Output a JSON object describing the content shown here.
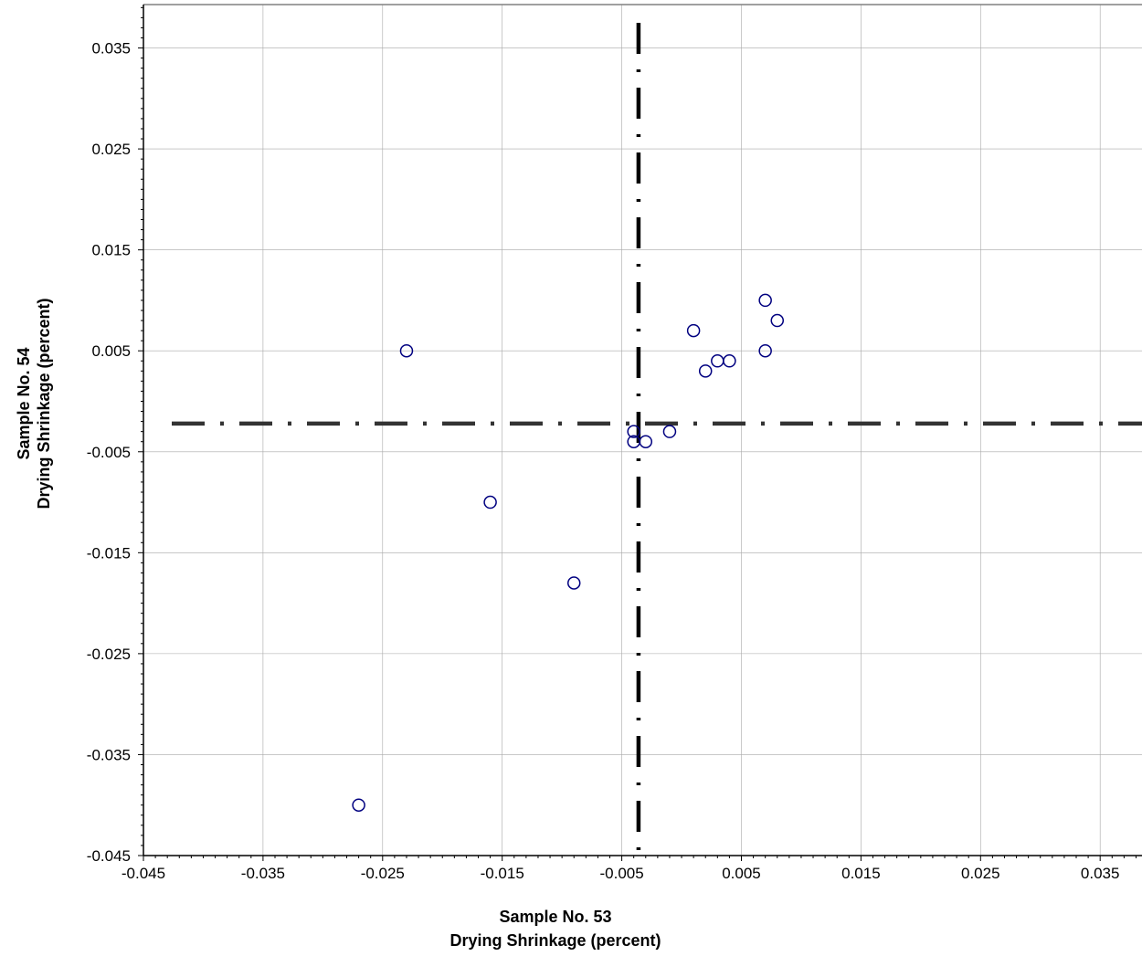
{
  "chart_data": {
    "type": "scatter",
    "title": "",
    "xlabel": [
      "Sample No. 53",
      "Drying Shrinkage (percent)"
    ],
    "ylabel": [
      "Sample No. 54",
      "Drying Shrinkage (percent)"
    ],
    "xlim": [
      -0.045,
      0.0385
    ],
    "ylim": [
      -0.045,
      0.0393
    ],
    "x_ticks": [
      -0.045,
      -0.035,
      -0.025,
      -0.015,
      -0.005,
      0.005,
      0.015,
      0.025,
      0.035
    ],
    "y_ticks": [
      -0.045,
      -0.035,
      -0.025,
      -0.015,
      -0.005,
      0.005,
      0.015,
      0.025,
      0.035
    ],
    "x_tick_labels": [
      "-0.045",
      "-0.035",
      "-0.025",
      "-0.015",
      "-0.005",
      "0.005",
      "0.015",
      "0.025",
      "0.035"
    ],
    "y_tick_labels": [
      "-0.045",
      "-0.035",
      "-0.025",
      "-0.015",
      "-0.005",
      "0.005",
      "0.015",
      "0.025",
      "0.035"
    ],
    "grid": true,
    "marker_color": "#000080",
    "reference_line_color": "#000000",
    "points": [
      {
        "x": -0.027,
        "y": -0.04
      },
      {
        "x": -0.023,
        "y": 0.005
      },
      {
        "x": -0.016,
        "y": -0.01
      },
      {
        "x": -0.009,
        "y": -0.018
      },
      {
        "x": -0.004,
        "y": -0.003
      },
      {
        "x": -0.004,
        "y": -0.004
      },
      {
        "x": -0.003,
        "y": -0.004
      },
      {
        "x": -0.001,
        "y": -0.003
      },
      {
        "x": 0.001,
        "y": 0.007
      },
      {
        "x": 0.002,
        "y": 0.003
      },
      {
        "x": 0.003,
        "y": 0.004
      },
      {
        "x": 0.004,
        "y": 0.004
      },
      {
        "x": 0.007,
        "y": 0.01
      },
      {
        "x": 0.007,
        "y": 0.005
      },
      {
        "x": 0.008,
        "y": 0.008
      }
    ],
    "reference_lines": {
      "vertical_x": -0.0036,
      "horizontal_y": -0.0022
    }
  }
}
